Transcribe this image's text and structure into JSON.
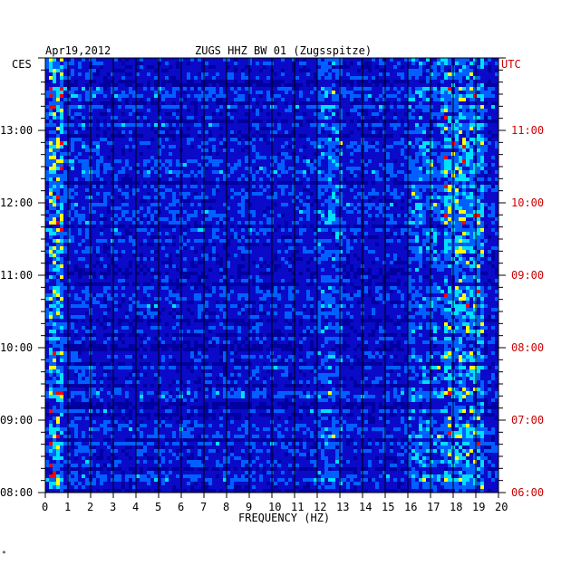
{
  "header": {
    "date": "Apr19,2012",
    "station": "ZUGS HHZ BW 01 (Zugsspitze)"
  },
  "left_axis": {
    "label": "CES",
    "color": "#000000"
  },
  "right_axis": {
    "label": "UTC",
    "color": "#cc0000"
  },
  "footer_mark": "*",
  "chart_data": {
    "type": "heatmap",
    "title": "ZUGS HHZ BW 01 (Zugsspitze)",
    "date": "Apr19,2012",
    "xlabel": "FREQUENCY (HZ)",
    "xlim": [
      0,
      20
    ],
    "x_ticks": [
      "0",
      "1",
      "2",
      "3",
      "4",
      "5",
      "6",
      "7",
      "8",
      "9",
      "10",
      "11",
      "12",
      "13",
      "14",
      "15",
      "16",
      "17",
      "18",
      "19",
      "20"
    ],
    "y_left_label": "CES",
    "y_left_ticks": [
      "08:00",
      "09:00",
      "10:00",
      "11:00",
      "12:00",
      "13:00"
    ],
    "y_right_label": "UTC",
    "y_right_ticks": [
      "06:00",
      "07:00",
      "08:00",
      "09:00",
      "10:00",
      "11:00"
    ],
    "ylim_hours_local": [
      8,
      14
    ],
    "colors": {
      "background": "#0a0ac8",
      "low": "#0000a0",
      "mid": "#0060ff",
      "high": "#00e0ff",
      "peak": "#ffff00",
      "max": "#ff0000"
    },
    "energy_bands": [
      {
        "freq_hz": [
          0.1,
          0.7
        ],
        "level": "high"
      },
      {
        "freq_hz": [
          17.6,
          19.3
        ],
        "level": "high"
      },
      {
        "freq_hz": [
          11.9,
          13.1
        ],
        "level": "mid"
      },
      {
        "freq_hz": [
          16.0,
          17.5
        ],
        "level": "mid"
      }
    ]
  }
}
